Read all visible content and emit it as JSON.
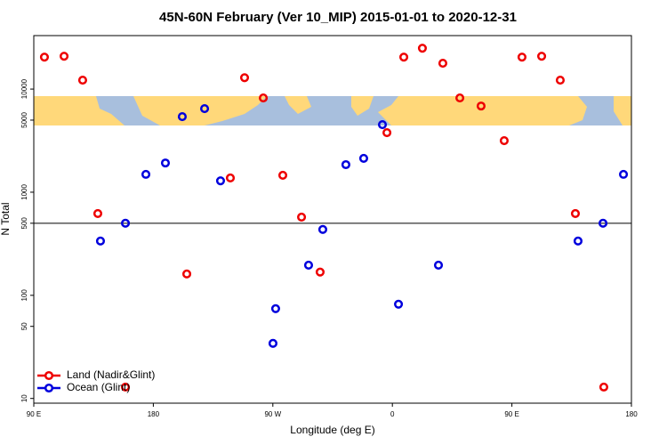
{
  "chart_data": {
    "type": "scatter",
    "title": "45N-60N February (Ver 10_MIP)   2015-01-01 to 2020-12-31",
    "x_label": "Longitude (deg E)",
    "y_label": "N Total",
    "log_y": true,
    "hline": 500,
    "legend": "bottom-left",
    "xlim": [
      90,
      540
    ],
    "xticks": [
      {
        "value": 90,
        "label": "90 E"
      },
      180,
      {
        "value": 270,
        "label": "90 W"
      },
      {
        "value": 360,
        "label": "0"
      },
      {
        "value": 450,
        "label": "90 E"
      },
      {
        "value": 540,
        "label": "180"
      }
    ],
    "ylim": [
      9,
      33000
    ],
    "yticks": [
      10,
      50,
      100,
      500,
      1000,
      5000,
      10000
    ],
    "series": [
      {
        "name": "Land (Nadir&Glint)",
        "color": "#ee0000",
        "x": [
          98.0,
          112.8,
          126.8,
          138.2,
          159.0,
          205.2,
          238.0,
          248.7,
          262.8,
          277.5,
          291.6,
          305.6,
          355.9,
          368.6,
          382.6,
          398.0,
          410.8,
          426.8,
          444.2,
          457.6,
          472.4,
          486.4,
          497.8,
          519.2
        ],
        "values": [
          20400,
          20800,
          12200,
          621,
          12.9,
          161,
          1374,
          12900,
          8200,
          1460,
          574,
          168,
          3780,
          20400,
          24900,
          17800,
          8200,
          6850,
          3160,
          20400,
          20800,
          12200,
          621,
          12.9
        ]
      },
      {
        "name": "Ocean (Glint)",
        "color": "#0000dd",
        "x": [
          140.2,
          159.0,
          174.4,
          189.1,
          201.8,
          218.6,
          230.6,
          270.1,
          272.1,
          296.9,
          307.6,
          325.0,
          338.4,
          352.5,
          364.6,
          394.7,
          499.8,
          518.6,
          534.0
        ],
        "values": [
          336,
          500,
          1490,
          1920,
          5400,
          6460,
          1290,
          34.2,
          74.3,
          196,
          435,
          1850,
          2130,
          4520,
          82,
          196,
          336,
          500,
          1490
        ]
      }
    ]
  }
}
